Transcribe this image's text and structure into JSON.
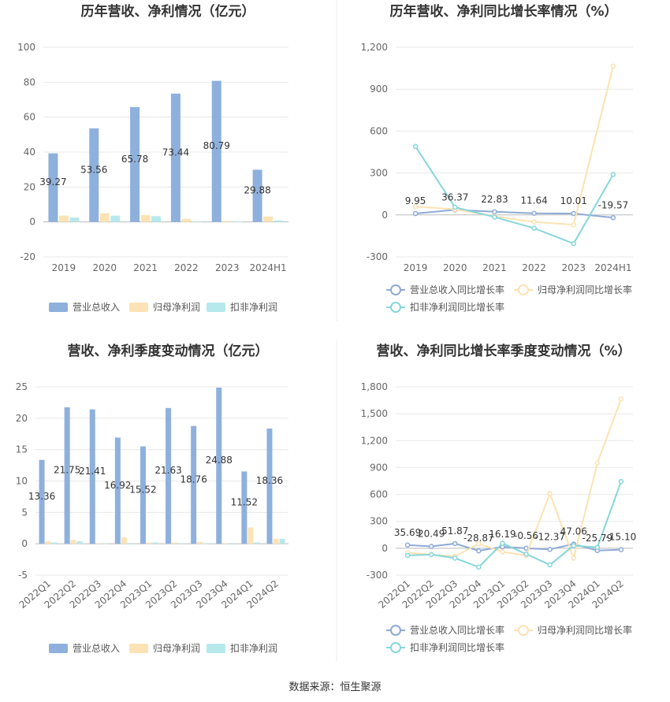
{
  "source": "数据来源：恒生聚源",
  "colors": {
    "revenue": "#8eb0dd",
    "net_profit": "#fce3b5",
    "deducted_profit": "#b7e8ec",
    "revenue_line": "#8eaad8",
    "net_profit_line": "#fde2b2",
    "deducted_profit_line": "#86d6da"
  },
  "chart_data": [
    {
      "type": "bar",
      "title": "历年营收、净利情况（亿元）",
      "categories": [
        "2019",
        "2020",
        "2021",
        "2022",
        "2023",
        "2024H1"
      ],
      "ylim": [
        -20,
        100
      ],
      "yticks": [
        "-20",
        "0",
        "20",
        "40",
        "60",
        "80",
        "100"
      ],
      "ytick_values": [
        -20,
        0,
        20,
        40,
        60,
        80,
        100
      ],
      "series": [
        {
          "name": "营业总收入",
          "values": [
            39.27,
            53.56,
            65.78,
            73.44,
            80.79,
            29.88
          ],
          "labels": [
            "39.27",
            "53.56",
            "65.78",
            "73.44",
            "80.79",
            "29.88"
          ]
        },
        {
          "name": "归母净利润",
          "values": [
            3.6,
            5.0,
            4.0,
            1.8,
            0.5,
            3.1
          ]
        },
        {
          "name": "扣非净利润",
          "values": [
            2.5,
            3.6,
            3.3,
            0.2,
            0.1,
            0.8
          ]
        }
      ],
      "legend": "bottom"
    },
    {
      "type": "line",
      "title": "历年营收、净利同比增长率情况（%）",
      "categories": [
        "2019",
        "2020",
        "2021",
        "2022",
        "2023",
        "2024H1"
      ],
      "ylim": [
        -300,
        1200
      ],
      "yticks": [
        "-300",
        "0",
        "300",
        "600",
        "900",
        "1,200"
      ],
      "ytick_values": [
        -300,
        0,
        300,
        600,
        900,
        1200
      ],
      "series": [
        {
          "name": "营业总收入同比增长率",
          "values": [
            9.95,
            36.37,
            22.83,
            11.64,
            10.01,
            -19.57
          ],
          "labels": [
            "9.95",
            "36.37",
            "22.83",
            "11.64",
            "10.01",
            "-19.57"
          ]
        },
        {
          "name": "归母净利润同比增长率",
          "values": [
            60,
            40,
            -10,
            -50,
            -70,
            1065
          ]
        },
        {
          "name": "扣非净利润同比增长率",
          "values": [
            490,
            55,
            -15,
            -95,
            -205,
            290
          ]
        }
      ],
      "legend": "bottom"
    },
    {
      "type": "bar",
      "title": "营收、净利季度变动情况（亿元）",
      "categories": [
        "2022Q1",
        "2022Q2",
        "2022Q3",
        "2022Q4",
        "2023Q1",
        "2023Q2",
        "2023Q3",
        "2023Q4",
        "2024Q1",
        "2024Q2"
      ],
      "ylim": [
        -5,
        25
      ],
      "yticks": [
        "-5",
        "0",
        "5",
        "10",
        "15",
        "20",
        "25"
      ],
      "ytick_values": [
        -5,
        0,
        5,
        10,
        15,
        20,
        25
      ],
      "series": [
        {
          "name": "营业总收入",
          "values": [
            13.36,
            21.75,
            21.41,
            16.92,
            15.52,
            21.63,
            18.76,
            24.88,
            11.52,
            18.36
          ],
          "labels": [
            "13.36",
            "21.75",
            "21.41",
            "16.92",
            "15.52",
            "21.63",
            "18.76",
            "24.88",
            "11.52",
            "18.36"
          ]
        },
        {
          "name": "归母净利润",
          "values": [
            0.4,
            0.6,
            0.1,
            1.0,
            0.2,
            0.2,
            0.3,
            0.1,
            2.6,
            0.8
          ]
        },
        {
          "name": "扣非净利润",
          "values": [
            0.2,
            0.4,
            0.05,
            -0.1,
            0.2,
            0.1,
            0.05,
            -0.1,
            0.2,
            0.8
          ]
        }
      ],
      "legend": "bottom"
    },
    {
      "type": "line",
      "title": "营收、净利同比增长率季度变动情况（%）",
      "categories": [
        "2022Q1",
        "2022Q2",
        "2022Q3",
        "2022Q4",
        "2023Q1",
        "2023Q2",
        "2023Q3",
        "2023Q4",
        "2024Q1",
        "2024Q2"
      ],
      "ylim": [
        -300,
        1800
      ],
      "yticks": [
        "-300",
        "0",
        "300",
        "600",
        "900",
        "1,200",
        "1,500",
        "1,800"
      ],
      "ytick_values": [
        -300,
        0,
        300,
        600,
        900,
        1200,
        1500,
        1800
      ],
      "series": [
        {
          "name": "营业总收入同比增长率",
          "values": [
            35.69,
            20.49,
            51.87,
            -28.87,
            16.19,
            -0.56,
            -12.37,
            47.06,
            -25.79,
            -15.1
          ],
          "labels": [
            "35.69",
            "20.49",
            "51.87",
            "-28.87",
            "16.19",
            "-0.56",
            "-12.37",
            "47.06",
            "-25.79",
            "-15.10"
          ]
        },
        {
          "name": "归母净利润同比增长率",
          "values": [
            -50,
            -70,
            -90,
            50,
            -40,
            -80,
            610,
            -110,
            950,
            1665
          ]
        },
        {
          "name": "扣非净利润同比增长率",
          "values": [
            -80,
            -70,
            -110,
            -210,
            55,
            -65,
            -185,
            30,
            10,
            745
          ]
        }
      ],
      "legend": "bottom"
    }
  ]
}
